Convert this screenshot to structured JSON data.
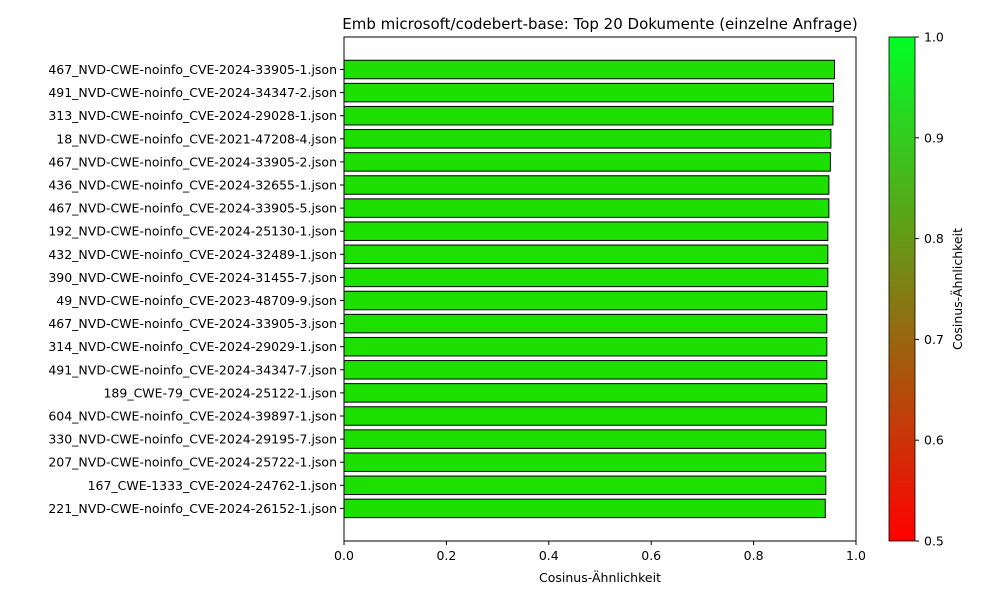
{
  "chart_data": {
    "type": "bar",
    "orientation": "horizontal",
    "title": "Emb microsoft/codebert-base: Top 20 Dokumente (einzelne Anfrage)",
    "xlabel": "Cosinus-Ähnlichkeit",
    "ylabel": "",
    "xlim": [
      0.0,
      1.0
    ],
    "xticks": [
      "0.0",
      "0.2",
      "0.4",
      "0.6",
      "0.8",
      "1.0"
    ],
    "grid": false,
    "bar_color": "#1ee000",
    "bar_edge_color": "#000000",
    "categories": [
      "467_NVD-CWE-noinfo_CVE-2024-33905-1.json",
      "491_NVD-CWE-noinfo_CVE-2024-34347-2.json",
      "313_NVD-CWE-noinfo_CVE-2024-29028-1.json",
      "18_NVD-CWE-noinfo_CVE-2021-47208-4.json",
      "467_NVD-CWE-noinfo_CVE-2024-33905-2.json",
      "436_NVD-CWE-noinfo_CVE-2024-32655-1.json",
      "467_NVD-CWE-noinfo_CVE-2024-33905-5.json",
      "192_NVD-CWE-noinfo_CVE-2024-25130-1.json",
      "432_NVD-CWE-noinfo_CVE-2024-32489-1.json",
      "390_NVD-CWE-noinfo_CVE-2024-31455-7.json",
      "49_NVD-CWE-noinfo_CVE-2023-48709-9.json",
      "467_NVD-CWE-noinfo_CVE-2024-33905-3.json",
      "314_NVD-CWE-noinfo_CVE-2024-29029-1.json",
      "491_NVD-CWE-noinfo_CVE-2024-34347-7.json",
      "189_CWE-79_CVE-2024-25122-1.json",
      "604_NVD-CWE-noinfo_CVE-2024-39897-1.json",
      "330_NVD-CWE-noinfo_CVE-2024-29195-7.json",
      "207_NVD-CWE-noinfo_CVE-2024-25722-1.json",
      "167_CWE-1333_CVE-2024-24762-1.json",
      "221_NVD-CWE-noinfo_CVE-2024-26152-1.json"
    ],
    "values": [
      0.958,
      0.956,
      0.955,
      0.951,
      0.95,
      0.947,
      0.947,
      0.945,
      0.945,
      0.945,
      0.943,
      0.943,
      0.943,
      0.943,
      0.943,
      0.942,
      0.941,
      0.941,
      0.941,
      0.94
    ],
    "colorbar": {
      "label": "Cosinus-Ähnlichkeit",
      "range": [
        0.5,
        1.0
      ],
      "ticks": [
        "0.5",
        "0.6",
        "0.7",
        "0.8",
        "0.9",
        "1.0"
      ],
      "color_low": "#ff0000",
      "color_high": "#00ff26"
    }
  }
}
